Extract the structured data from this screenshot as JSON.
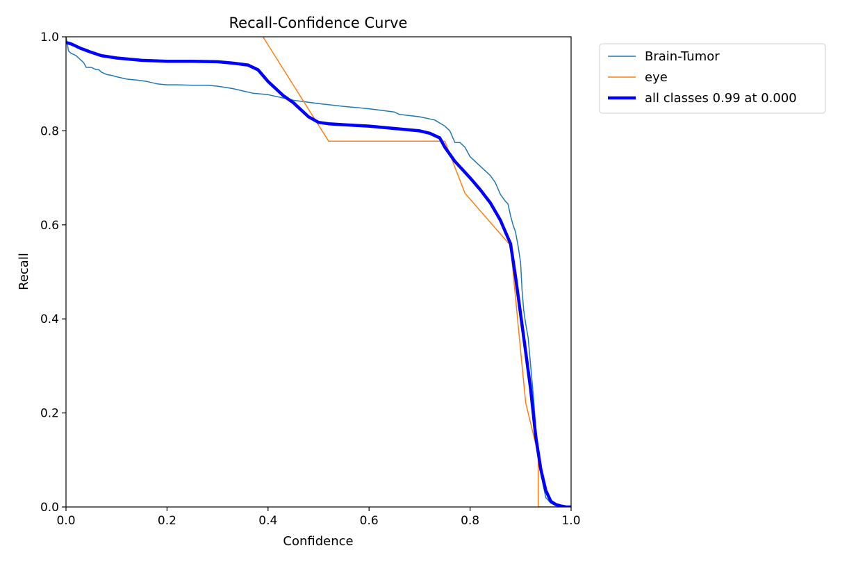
{
  "chart_data": {
    "type": "line",
    "title": "Recall-Confidence Curve",
    "xlabel": "Confidence",
    "ylabel": "Recall",
    "xlim": [
      0,
      1
    ],
    "ylim": [
      0,
      1
    ],
    "xticks": [
      "0.0",
      "0.2",
      "0.4",
      "0.6",
      "0.8",
      "1.0"
    ],
    "yticks": [
      "0.0",
      "0.2",
      "0.4",
      "0.6",
      "0.8",
      "1.0"
    ],
    "grid": false,
    "legend": "outside-top-right",
    "series": [
      {
        "name": "Brain-Tumor",
        "color": "#1f77b4",
        "line_width": 1.5,
        "x": [
          0.0,
          0.005,
          0.01,
          0.02,
          0.03,
          0.035,
          0.04,
          0.05,
          0.06,
          0.065,
          0.07,
          0.08,
          0.09,
          0.1,
          0.12,
          0.14,
          0.16,
          0.18,
          0.2,
          0.22,
          0.25,
          0.28,
          0.3,
          0.33,
          0.35,
          0.37,
          0.4,
          0.45,
          0.5,
          0.55,
          0.6,
          0.65,
          0.66,
          0.7,
          0.73,
          0.75,
          0.76,
          0.77,
          0.78,
          0.79,
          0.8,
          0.81,
          0.82,
          0.83,
          0.84,
          0.85,
          0.86,
          0.87,
          0.875,
          0.88,
          0.885,
          0.89,
          0.895,
          0.9,
          0.903,
          0.906,
          0.91,
          0.915,
          0.92,
          0.925,
          0.93,
          0.935,
          0.94,
          0.95,
          0.96,
          0.97,
          0.98,
          0.99,
          1.0
        ],
        "y": [
          1.0,
          0.97,
          0.965,
          0.96,
          0.95,
          0.945,
          0.935,
          0.935,
          0.93,
          0.93,
          0.925,
          0.92,
          0.918,
          0.915,
          0.91,
          0.908,
          0.905,
          0.9,
          0.898,
          0.898,
          0.897,
          0.897,
          0.895,
          0.89,
          0.885,
          0.88,
          0.877,
          0.865,
          0.858,
          0.852,
          0.847,
          0.84,
          0.835,
          0.83,
          0.823,
          0.81,
          0.8,
          0.775,
          0.775,
          0.765,
          0.745,
          0.735,
          0.725,
          0.715,
          0.705,
          0.69,
          0.665,
          0.65,
          0.645,
          0.62,
          0.6,
          0.585,
          0.555,
          0.52,
          0.46,
          0.42,
          0.39,
          0.36,
          0.3,
          0.24,
          0.17,
          0.12,
          0.07,
          0.02,
          0.008,
          0.003,
          0.001,
          0.0,
          0.0
        ]
      },
      {
        "name": "eye",
        "color": "#ff7f0e",
        "line_width": 1.5,
        "x": [
          0.39,
          0.52,
          0.7,
          0.75,
          0.79,
          0.88,
          0.9,
          0.91,
          0.935,
          0.935,
          1.0
        ],
        "y": [
          1.0,
          0.778,
          0.778,
          0.778,
          0.667,
          0.556,
          0.333,
          0.222,
          0.111,
          0.0,
          0.0
        ],
        "extends_above_axis": true
      },
      {
        "name": "all classes 0.99 at 0.000",
        "color": "#0000ff",
        "line_width": 4.5,
        "x": [
          0.0,
          0.01,
          0.02,
          0.03,
          0.05,
          0.07,
          0.1,
          0.15,
          0.2,
          0.25,
          0.3,
          0.33,
          0.36,
          0.38,
          0.4,
          0.43,
          0.45,
          0.48,
          0.5,
          0.52,
          0.55,
          0.6,
          0.65,
          0.7,
          0.72,
          0.74,
          0.75,
          0.77,
          0.8,
          0.82,
          0.84,
          0.86,
          0.87,
          0.88,
          0.89,
          0.9,
          0.91,
          0.92,
          0.93,
          0.94,
          0.95,
          0.96,
          0.97,
          0.98,
          0.99,
          1.0
        ],
        "y": [
          0.988,
          0.985,
          0.98,
          0.975,
          0.967,
          0.96,
          0.955,
          0.95,
          0.948,
          0.948,
          0.947,
          0.944,
          0.94,
          0.93,
          0.905,
          0.875,
          0.86,
          0.83,
          0.818,
          0.815,
          0.813,
          0.81,
          0.805,
          0.8,
          0.795,
          0.785,
          0.765,
          0.735,
          0.7,
          0.675,
          0.647,
          0.61,
          0.585,
          0.56,
          0.49,
          0.41,
          0.33,
          0.25,
          0.15,
          0.08,
          0.035,
          0.012,
          0.005,
          0.002,
          0.0,
          0.0
        ]
      }
    ]
  }
}
